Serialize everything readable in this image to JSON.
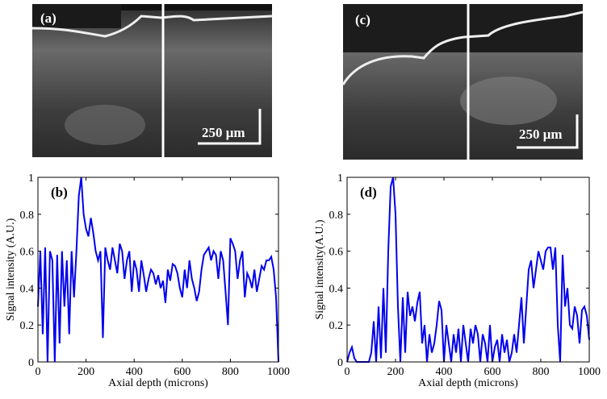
{
  "images": [
    {
      "label": "(a)",
      "scale_bar": "250 μm"
    },
    {
      "label": "(c)",
      "scale_bar": "250 μm"
    }
  ],
  "chart_data": [
    {
      "type": "line",
      "annotation": "(b)",
      "xlabel": "Axial depth (microns)",
      "ylabel": "Signal intensity (A.U.)",
      "color": "#0000ee",
      "xlim": [
        0,
        1000
      ],
      "xticks": [
        0,
        200,
        400,
        600,
        800,
        1000
      ],
      "ylim": [
        0,
        1
      ],
      "yticks": [
        0,
        0.2,
        0.4,
        0.6,
        0.8,
        1
      ],
      "x": [
        0,
        10,
        20,
        30,
        40,
        50,
        60,
        70,
        80,
        90,
        100,
        110,
        120,
        130,
        140,
        150,
        160,
        170,
        180,
        190,
        200,
        210,
        220,
        230,
        240,
        250,
        260,
        270,
        280,
        290,
        300,
        310,
        320,
        330,
        340,
        350,
        360,
        370,
        380,
        390,
        400,
        410,
        420,
        430,
        440,
        450,
        460,
        470,
        480,
        490,
        500,
        510,
        520,
        530,
        540,
        550,
        560,
        570,
        580,
        590,
        600,
        610,
        620,
        630,
        640,
        650,
        660,
        670,
        680,
        690,
        700,
        710,
        720,
        730,
        740,
        750,
        760,
        770,
        780,
        790,
        800,
        810,
        820,
        830,
        840,
        850,
        860,
        870,
        880,
        890,
        900,
        910,
        920,
        930,
        940,
        950,
        960,
        970,
        980,
        990,
        1000
      ],
      "values": [
        0.3,
        0.6,
        0.15,
        0.62,
        0,
        0.6,
        0.55,
        0,
        0.58,
        0.1,
        0.6,
        0.3,
        0.55,
        0.15,
        0.6,
        0.35,
        0.6,
        0.9,
        1.0,
        0.8,
        0.72,
        0.68,
        0.78,
        0.7,
        0.6,
        0.55,
        0.6,
        0.13,
        0.62,
        0.55,
        0.5,
        0.62,
        0.55,
        0.48,
        0.64,
        0.6,
        0.45,
        0.55,
        0.6,
        0.38,
        0.55,
        0.5,
        0.38,
        0.55,
        0.47,
        0.38,
        0.45,
        0.5,
        0.48,
        0.42,
        0.47,
        0.4,
        0.44,
        0.32,
        0.5,
        0.44,
        0.53,
        0.52,
        0.48,
        0.4,
        0.35,
        0.5,
        0.4,
        0.55,
        0.45,
        0.4,
        0.33,
        0.38,
        0.5,
        0.58,
        0.6,
        0.62,
        0.55,
        0.6,
        0.58,
        0.45,
        0.6,
        0.55,
        0.38,
        0.2,
        0.67,
        0.64,
        0.6,
        0.45,
        0.55,
        0.6,
        0.35,
        0.48,
        0.45,
        0.4,
        0.5,
        0.38,
        0.45,
        0.52,
        0.5,
        0.55,
        0.55,
        0.57,
        0.5,
        0.35,
        0
      ]
    },
    {
      "type": "line",
      "annotation": "(d)",
      "xlabel": "Axial depth (microns)",
      "ylabel": "Signal intensity(A.U.)",
      "color": "#0000ee",
      "xlim": [
        0,
        1000
      ],
      "xticks": [
        0,
        200,
        400,
        600,
        800,
        1000
      ],
      "ylim": [
        0,
        1
      ],
      "yticks": [
        0,
        0.2,
        0.4,
        0.6,
        0.8,
        1
      ],
      "x": [
        0,
        10,
        20,
        30,
        40,
        50,
        60,
        70,
        80,
        90,
        100,
        110,
        120,
        130,
        140,
        150,
        160,
        170,
        180,
        190,
        200,
        210,
        220,
        230,
        240,
        250,
        260,
        270,
        280,
        290,
        300,
        310,
        320,
        330,
        340,
        350,
        360,
        370,
        380,
        390,
        400,
        410,
        420,
        430,
        440,
        450,
        460,
        470,
        480,
        490,
        500,
        510,
        520,
        530,
        540,
        550,
        560,
        570,
        580,
        590,
        600,
        610,
        620,
        630,
        640,
        650,
        660,
        670,
        680,
        690,
        700,
        710,
        720,
        730,
        740,
        750,
        760,
        770,
        780,
        790,
        800,
        810,
        820,
        830,
        840,
        850,
        860,
        870,
        880,
        890,
        900,
        910,
        920,
        930,
        940,
        950,
        960,
        970,
        980,
        990,
        1000
      ],
      "values": [
        0,
        0.05,
        0.08,
        0.02,
        0,
        0,
        0,
        0,
        0,
        0,
        0.05,
        0.22,
        0,
        0.3,
        0.02,
        0.4,
        0.05,
        0.6,
        0.95,
        1.0,
        0.8,
        0.3,
        0,
        0.35,
        0.05,
        0.38,
        0.25,
        0.3,
        0.22,
        0.32,
        0.38,
        0.1,
        0.2,
        0,
        0.15,
        0.05,
        0.1,
        0.2,
        0.33,
        0.28,
        0,
        0.2,
        0.1,
        0,
        0.15,
        0.05,
        0.18,
        0,
        0.2,
        0.1,
        0,
        0.18,
        0.1,
        0.2,
        0.15,
        0,
        0.15,
        0.1,
        0,
        0.2,
        0,
        0.08,
        0.12,
        0,
        0.15,
        0.05,
        0.12,
        0,
        0.05,
        0.15,
        0.05,
        0.2,
        0.35,
        0.1,
        0.3,
        0.5,
        0.55,
        0.4,
        0.5,
        0.6,
        0.55,
        0.5,
        0.6,
        0.62,
        0.62,
        0.5,
        0.62,
        0.2,
        0,
        0.58,
        0.3,
        0.4,
        0.2,
        0.18,
        0.3,
        0.25,
        0.1,
        0.28,
        0.3,
        0.25,
        0.12
      ]
    }
  ]
}
